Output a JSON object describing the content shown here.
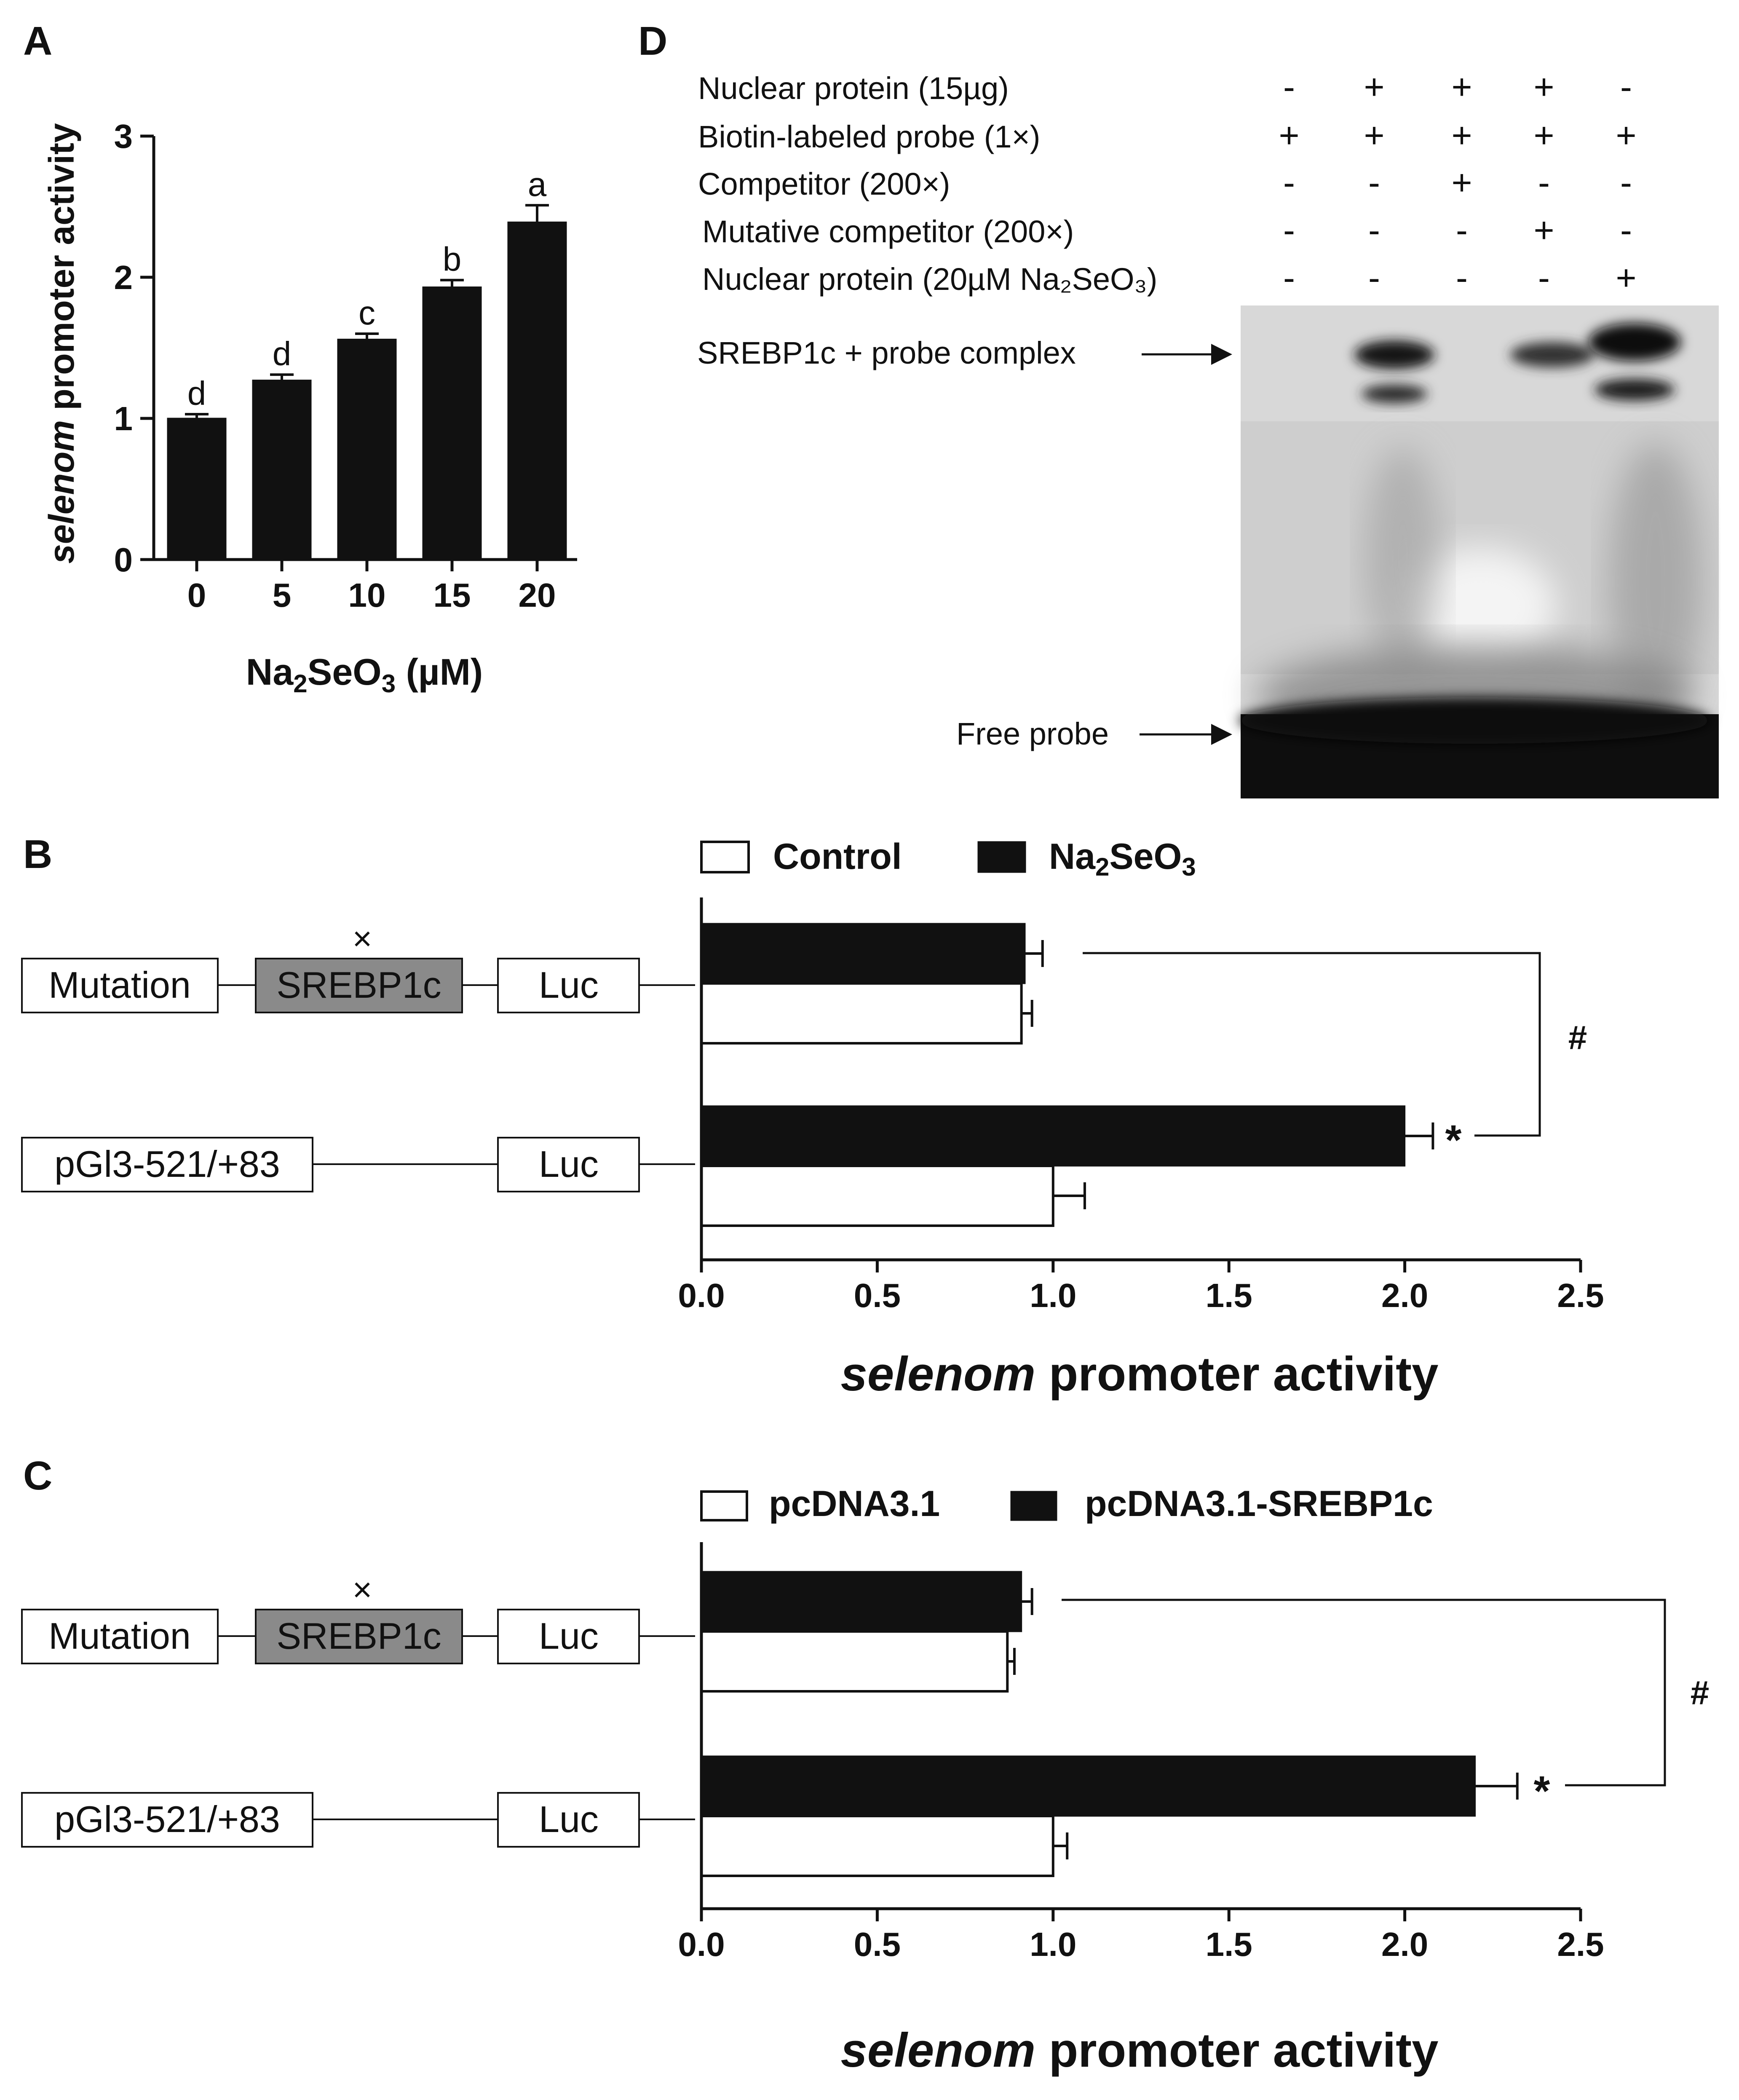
{
  "panels": {
    "a": {
      "label": "A",
      "chart_data": {
        "type": "bar",
        "categories": [
          "0",
          "5",
          "10",
          "15",
          "20"
        ],
        "values": [
          1.0,
          1.27,
          1.56,
          1.93,
          2.39
        ],
        "errors": [
          0.03,
          0.04,
          0.04,
          0.05,
          0.12
        ],
        "letters": [
          "d",
          "d",
          "c",
          "b",
          "a"
        ],
        "ylim": [
          0,
          3
        ],
        "yticks": [
          "0",
          "1",
          "2",
          "3"
        ],
        "ylabel_italic": "selenom",
        "ylabel_rest": " promoter activity",
        "xlabel_main": "Na",
        "xlabel_sub1": "2",
        "xlabel_mid": "SeO",
        "xlabel_sub2": "3",
        "xlabel_unit": "  (µM)",
        "bar_color": "#111111"
      }
    },
    "b": {
      "label": "B",
      "legend": {
        "control": "Control",
        "treat_main": "Na",
        "treat_sub1": "2",
        "treat_mid": "SeO",
        "treat_sub2": "3"
      },
      "constructs": {
        "mutation": "Mutation",
        "srebp": "SREBP1c",
        "luc1": "Luc",
        "pgl3": "pGl3-521/+83",
        "luc2": "Luc",
        "cross": "×"
      },
      "chart_data": {
        "type": "bar",
        "orientation": "horizontal",
        "categories": [
          "Mutation",
          "pGl3-521/+83"
        ],
        "series": [
          {
            "name": "Control",
            "values": [
              0.91,
              1.0
            ],
            "errors": [
              0.03,
              0.09
            ],
            "color": "#ffffff"
          },
          {
            "name": "Na2SeO3",
            "values": [
              0.92,
              2.0
            ],
            "errors": [
              0.05,
              0.08
            ],
            "color": "#111111"
          }
        ],
        "xlim": [
          0,
          2.5
        ],
        "xticks": [
          "0.0",
          "0.5",
          "1.0",
          "1.5",
          "2.0",
          "2.5"
        ],
        "xlabel_italic": "selenom",
        "xlabel_rest": " promoter activity",
        "star": "*",
        "hash": "#"
      }
    },
    "c": {
      "label": "C",
      "legend": {
        "control": "pcDNA3.1",
        "treat": "pcDNA3.1-SREBP1c"
      },
      "constructs": {
        "mutation": "Mutation",
        "srebp": "SREBP1c",
        "luc1": "Luc",
        "pgl3": "pGl3-521/+83",
        "luc2": "Luc",
        "cross": "×"
      },
      "chart_data": {
        "type": "bar",
        "orientation": "horizontal",
        "categories": [
          "Mutation",
          "pGl3-521/+83"
        ],
        "series": [
          {
            "name": "pcDNA3.1",
            "values": [
              0.87,
              1.0
            ],
            "errors": [
              0.02,
              0.04
            ],
            "color": "#ffffff"
          },
          {
            "name": "pcDNA3.1-SREBP1c",
            "values": [
              0.91,
              2.2
            ],
            "errors": [
              0.03,
              0.12
            ],
            "color": "#111111"
          }
        ],
        "xlim": [
          0,
          2.5
        ],
        "xticks": [
          "0.0",
          "0.5",
          "1.0",
          "1.5",
          "2.0",
          "2.5"
        ],
        "xlabel_italic": "selenom",
        "xlabel_rest": " promoter activity",
        "star": "*",
        "hash": "#"
      }
    },
    "d": {
      "label": "D",
      "rows": [
        {
          "label": "Nuclear protein (15µg)",
          "signs": [
            "-",
            "+",
            "+",
            "+",
            "-"
          ]
        },
        {
          "label": "Biotin-labeled probe (1×)",
          "signs": [
            "+",
            "+",
            "+",
            "+",
            "+"
          ]
        },
        {
          "label": "Competitor (200×)",
          "signs": [
            "-",
            "-",
            "+",
            "-",
            "-"
          ]
        },
        {
          "label": "Mutative competitor (200×)",
          "signs": [
            "-",
            "-",
            "-",
            "+",
            "-"
          ]
        },
        {
          "label": "Nuclear protein (20µM Na₂SeO₃)",
          "signs": [
            "-",
            "-",
            "-",
            "-",
            "+"
          ]
        }
      ],
      "complex_label": "SREBP1c + probe complex",
      "free_label": "Free probe"
    }
  }
}
